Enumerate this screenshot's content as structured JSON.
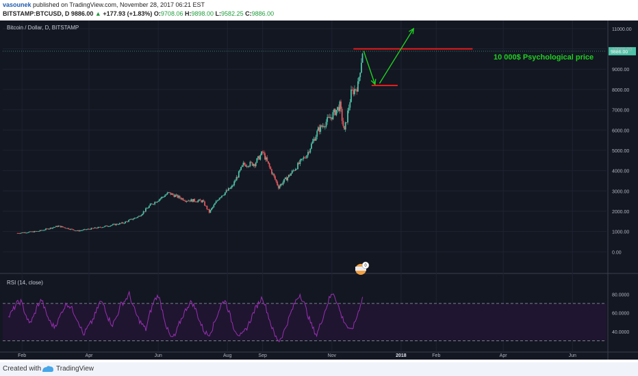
{
  "header": {
    "author": "vasounek",
    "published": "published on TradingView.com, November 28, 2017 06:21 EST",
    "symbol": "BITSTAMP:BTCUSD, D",
    "last": "9886.00",
    "change_arrow": "▲",
    "change": "+177.93 (+1.83%)",
    "o_label": "O:",
    "o_val": "9708.06",
    "h_label": "H:",
    "h_val": "9898.00",
    "l_label": "L:",
    "l_val": "9582.25",
    "c_label": "C:",
    "c_val": "9886.00"
  },
  "footer": {
    "created_with": "Created with",
    "brand": "TradingView"
  },
  "colors": {
    "bg": "#131722",
    "up": "#4ec2a6",
    "down": "#e0585c",
    "rsi_line": "#9b2fb5",
    "annotation_green": "#1fd11f",
    "annotation_red": "#e81b1b"
  },
  "chart_data": {
    "type": "candlestick",
    "title": "Bitcoin / Dollar, D, BITSTAMP",
    "price_ylim": [
      -1000,
      11400
    ],
    "price_ticks": [
      "0.00",
      "1000.00",
      "2000.00",
      "3000.00",
      "4000.00",
      "5000.00",
      "6000.00",
      "7000.00",
      "8000.00",
      "9000.00",
      "10000.00",
      "11000.00"
    ],
    "last_price_label": "9886.00",
    "x_ticks": [
      "Feb",
      "Apr",
      "Jun",
      "Aug",
      "Sep",
      "Nov",
      "2018",
      "Feb",
      "Apr",
      "Jun"
    ],
    "series_close_approx": [
      {
        "date": "2017-01-28",
        "close": 920
      },
      {
        "date": "2017-02-15",
        "close": 1010
      },
      {
        "date": "2017-03-05",
        "close": 1270
      },
      {
        "date": "2017-03-22",
        "close": 1030
      },
      {
        "date": "2017-04-10",
        "close": 1200
      },
      {
        "date": "2017-05-01",
        "close": 1420
      },
      {
        "date": "2017-05-15",
        "close": 1750
      },
      {
        "date": "2017-05-25",
        "close": 2300
      },
      {
        "date": "2017-06-10",
        "close": 2900
      },
      {
        "date": "2017-06-25",
        "close": 2550
      },
      {
        "date": "2017-07-10",
        "close": 2500
      },
      {
        "date": "2017-07-16",
        "close": 1950
      },
      {
        "date": "2017-07-25",
        "close": 2700
      },
      {
        "date": "2017-08-05",
        "close": 3200
      },
      {
        "date": "2017-08-15",
        "close": 4300
      },
      {
        "date": "2017-08-25",
        "close": 4350
      },
      {
        "date": "2017-09-01",
        "close": 4900
      },
      {
        "date": "2017-09-15",
        "close": 3200
      },
      {
        "date": "2017-09-25",
        "close": 3800
      },
      {
        "date": "2017-10-10",
        "close": 4800
      },
      {
        "date": "2017-10-20",
        "close": 6000
      },
      {
        "date": "2017-11-01",
        "close": 6700
      },
      {
        "date": "2017-11-08",
        "close": 7200
      },
      {
        "date": "2017-11-12",
        "close": 5900
      },
      {
        "date": "2017-11-18",
        "close": 7800
      },
      {
        "date": "2017-11-24",
        "close": 8200
      },
      {
        "date": "2017-11-28",
        "close": 9886
      }
    ],
    "annotations": [
      {
        "type": "horizontal_line",
        "price": 10000,
        "color": "red",
        "label": "10 000$ Psychological price"
      },
      {
        "type": "horizontal_line",
        "price": 8200,
        "color": "red"
      },
      {
        "type": "arrow",
        "from": {
          "date": "2017-11-29",
          "price": 9900
        },
        "to": {
          "date": "2017-12-09",
          "price": 8250
        },
        "color": "green"
      },
      {
        "type": "arrow",
        "from": {
          "date": "2017-12-13",
          "price": 8300
        },
        "to": {
          "date": "2018-01-12",
          "price": 11000
        },
        "color": "green"
      }
    ],
    "rsi": {
      "label": "RSI (14, close)",
      "ylim": [
        20,
        100
      ],
      "ticks": [
        "40.0000",
        "60.0000",
        "80.0000"
      ],
      "bands": [
        30,
        70
      ],
      "values_approx": [
        55,
        62,
        70,
        72,
        60,
        48,
        55,
        68,
        74,
        60,
        50,
        45,
        52,
        63,
        70,
        66,
        58,
        49,
        36,
        44,
        50,
        60,
        72,
        68,
        54,
        47,
        56,
        69,
        73,
        80,
        66,
        55,
        48,
        42,
        60,
        73,
        79,
        62,
        44,
        33,
        35,
        48,
        58,
        67,
        72,
        63,
        50,
        40,
        36,
        44,
        56,
        68,
        74,
        60,
        45,
        38,
        35,
        42,
        51,
        62,
        70,
        77,
        63,
        48,
        35,
        30,
        38,
        50,
        62,
        73,
        80,
        70,
        56,
        44,
        36,
        49,
        62,
        75,
        82,
        70,
        56,
        48,
        40,
        47,
        61,
        77
      ]
    }
  }
}
